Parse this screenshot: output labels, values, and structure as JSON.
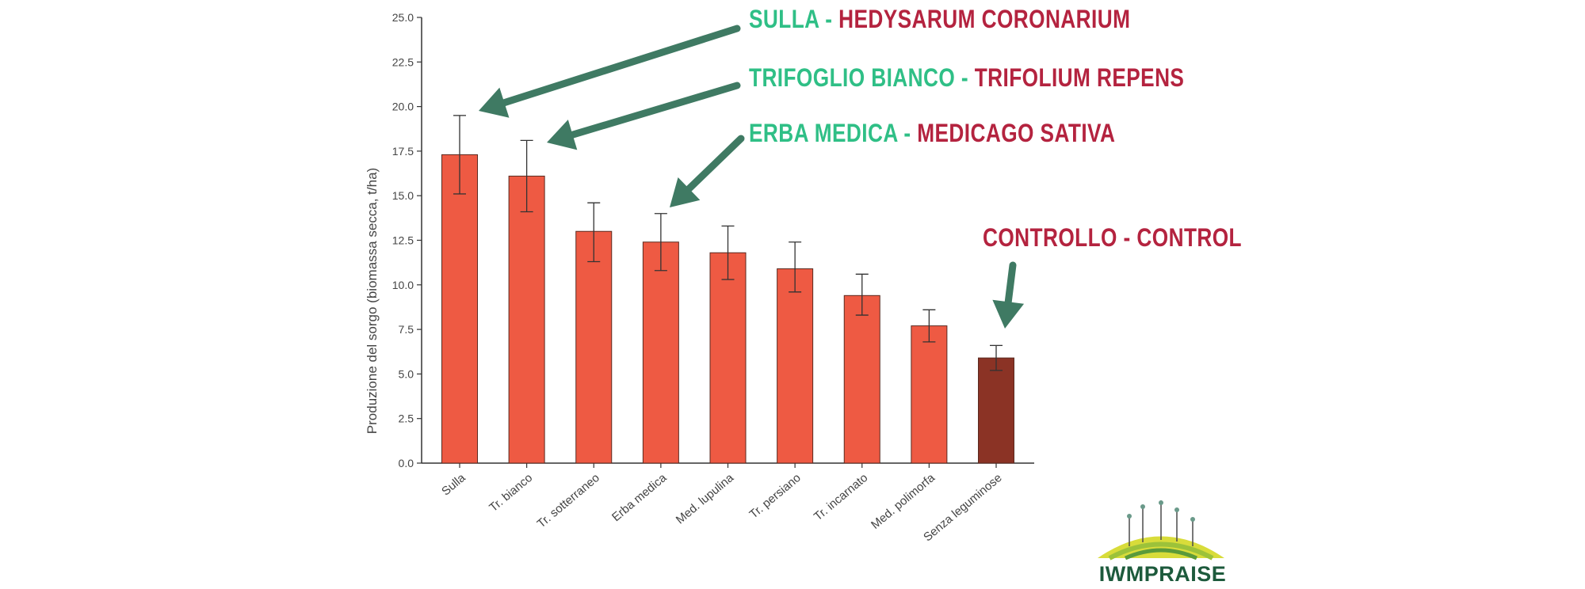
{
  "chart_data": {
    "type": "bar",
    "categories": [
      "Sulla",
      "Tr. bianco",
      "Tr. sotterraneo",
      "Erba medica",
      "Med. lupulina",
      "Tr. persiano",
      "Tr. incarnato",
      "Med. polimorfa",
      "Senza leguminose"
    ],
    "values": [
      17.3,
      16.1,
      13.0,
      12.4,
      11.8,
      10.9,
      9.4,
      7.7,
      5.9
    ],
    "error_low": [
      15.1,
      14.1,
      11.3,
      10.8,
      10.3,
      9.6,
      8.3,
      6.8,
      5.2
    ],
    "error_high": [
      19.5,
      18.1,
      14.6,
      14.0,
      13.3,
      12.4,
      10.6,
      8.6,
      6.6
    ],
    "ylabel": "Produzione del sorgo (biomassa secca, t/ha)",
    "ylim": [
      0,
      25
    ],
    "yticks": [
      "0.0",
      "2.5",
      "5.0",
      "7.5",
      "10.0",
      "12.5",
      "15.0",
      "17.5",
      "20.0",
      "22.5",
      "25.0"
    ],
    "grid": false,
    "colors": {
      "bar": "#ee5a43",
      "control_bar": "#8b3325",
      "arrow": "#3f7a63"
    }
  },
  "annotations": {
    "sulla": {
      "common": "SULLA",
      "sep": " - ",
      "latin": "HEDYSARUM CORONARIUM"
    },
    "trifoglio": {
      "common": "TRIFOGLIO BIANCO",
      "sep": " - ",
      "latin": "TRIFOLIUM REPENS"
    },
    "erba": {
      "common": "ERBA MEDICA",
      "sep": " - ",
      "latin": "MEDICAGO SATIVA"
    },
    "controllo": {
      "label": "CONTROLLO - CONTROL"
    }
  },
  "logo": {
    "text": "IWMPRAISE"
  }
}
